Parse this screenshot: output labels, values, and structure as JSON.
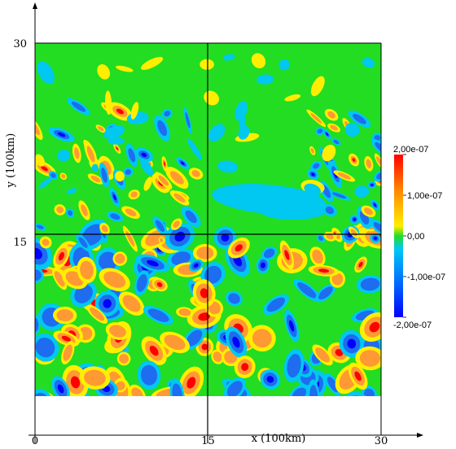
{
  "chart_data": {
    "type": "heatmap",
    "title": "",
    "xlabel": "x (100km)",
    "ylabel": "y (100km)",
    "xlim": [
      0,
      30
    ],
    "ylim": [
      0,
      30
    ],
    "x_ticks": [
      {
        "value": 0,
        "label": "0"
      },
      {
        "value": 15,
        "label": "15"
      },
      {
        "value": 30,
        "label": "30"
      }
    ],
    "y_ticks": [
      {
        "value": 15,
        "label": "15"
      },
      {
        "value": 30,
        "label": "30"
      }
    ],
    "grid_lines": {
      "x": [
        15
      ],
      "y": [
        15
      ]
    },
    "colorbar": {
      "range": [
        -2e-07,
        2e-07
      ],
      "ticks": [
        {
          "value": 2e-07,
          "label": "2,00e-07"
        },
        {
          "value": 1e-07,
          "label": "1,00e-07"
        },
        {
          "value": 0.0,
          "label": "0,00"
        },
        {
          "value": -1e-07,
          "label": "-1,00e-07"
        },
        {
          "value": -2e-07,
          "label": "-2,00e-07"
        }
      ],
      "colors": [
        "#0000ff",
        "#0064ff",
        "#00bfff",
        "#00e5cc",
        "#22dd22",
        "#ffee00",
        "#ff9900",
        "#ff0000"
      ]
    },
    "field_description": "contour field; nearly uniform (~0) in upper half with scattered positive/negative eddies, strongly mixed positive/negative blobs in lower half",
    "colors": {
      "background": "#22dd22",
      "strong_negative": "#0000ff",
      "negative": "#1e6cf0",
      "weak_negative": "#00c8f0",
      "weak_positive": "#ffee00",
      "positive": "#ff9933",
      "strong_positive": "#ff0000"
    }
  }
}
